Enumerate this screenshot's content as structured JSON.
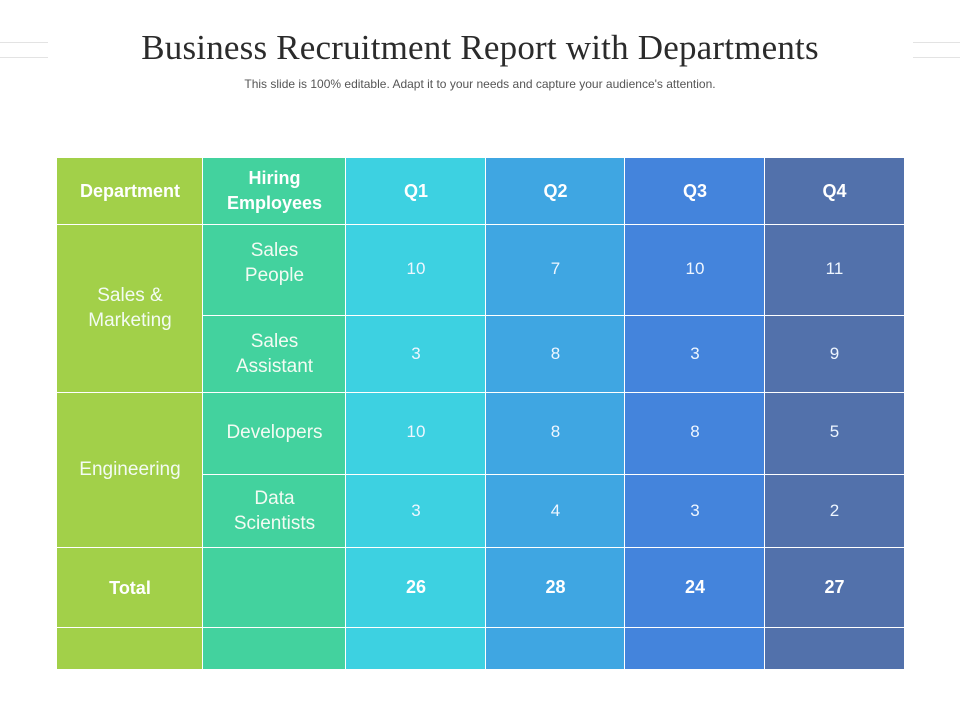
{
  "slide": {
    "title": "Business Recruitment Report with Departments",
    "subtitle": "This slide is 100% editable. Adapt it to your needs and capture your audience's attention."
  },
  "table": {
    "headers": [
      "Department",
      "Hiring Employees",
      "Q1",
      "Q2",
      "Q3",
      "Q4"
    ],
    "groups": [
      {
        "department": "Sales & Marketing",
        "rows": [
          {
            "role": "Sales People",
            "q1": "10",
            "q2": "7",
            "q3": "10",
            "q4": "11"
          },
          {
            "role": "Sales Assistant",
            "q1": "3",
            "q2": "8",
            "q3": "3",
            "q4": "9"
          }
        ]
      },
      {
        "department": "Engineering",
        "rows": [
          {
            "role": "Developers",
            "q1": "10",
            "q2": "8",
            "q3": "8",
            "q4": "5"
          },
          {
            "role": "Data Scientists",
            "q1": "3",
            "q2": "4",
            "q3": "3",
            "q4": "2"
          }
        ]
      }
    ],
    "total": {
      "label": "Total",
      "q1": "26",
      "q2": "28",
      "q3": "24",
      "q4": "27"
    },
    "column_colors": {
      "department": "#a2d049",
      "role": "#43d29e",
      "q1": "#3dd1e1",
      "q2": "#3fa6e2",
      "q3": "#4484dc",
      "q4": "#5271ab"
    }
  }
}
